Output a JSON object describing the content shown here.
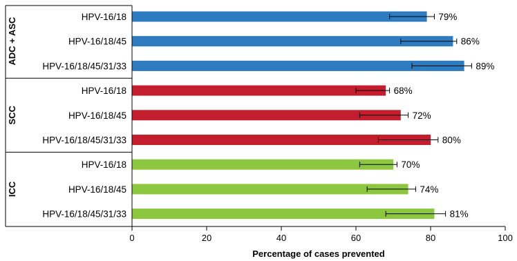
{
  "chart_data": {
    "type": "bar",
    "orientation": "horizontal",
    "xlabel": "Percentage of cases prevented",
    "xlim": [
      0,
      100
    ],
    "xticks": [
      0,
      20,
      40,
      60,
      80,
      100
    ],
    "groups": [
      {
        "name": "ADC + ASC",
        "color": "#2f7bbf",
        "bars": [
          {
            "label": "HPV-16/18",
            "value": 79,
            "value_label": "79%",
            "err_low": 69,
            "err_high": 81
          },
          {
            "label": "HPV-16/18/45",
            "value": 86,
            "value_label": "86%",
            "err_low": 72,
            "err_high": 87
          },
          {
            "label": "HPV-16/18/45/31/33",
            "value": 89,
            "value_label": "89%",
            "err_low": 75,
            "err_high": 91
          }
        ]
      },
      {
        "name": "SCC",
        "color": "#c41e2e",
        "bars": [
          {
            "label": "HPV-16/18",
            "value": 68,
            "value_label": "68%",
            "err_low": 60,
            "err_high": 69
          },
          {
            "label": "HPV-16/18/45",
            "value": 72,
            "value_label": "72%",
            "err_low": 61,
            "err_high": 74
          },
          {
            "label": "HPV-16/18/45/31/33",
            "value": 80,
            "value_label": "80%",
            "err_low": 66,
            "err_high": 82
          }
        ]
      },
      {
        "name": "ICC",
        "color": "#8dc63f",
        "bars": [
          {
            "label": "HPV-16/18",
            "value": 70,
            "value_label": "70%",
            "err_low": 61,
            "err_high": 71
          },
          {
            "label": "HPV-16/18/45",
            "value": 74,
            "value_label": "74%",
            "err_low": 63,
            "err_high": 76
          },
          {
            "label": "HPV-16/18/45/31/33",
            "value": 81,
            "value_label": "81%",
            "err_low": 68,
            "err_high": 84
          }
        ]
      }
    ]
  }
}
